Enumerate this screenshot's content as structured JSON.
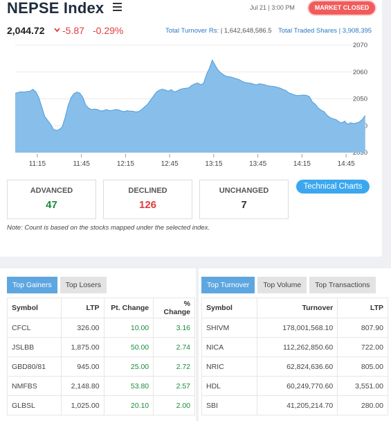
{
  "header": {
    "title": "NEPSE Index",
    "date": "Jul 21 | 3:00 PM",
    "market_status": "MARKET CLOSED"
  },
  "index": {
    "value": "2,044.72",
    "change": "-5.87",
    "change_pct": "-0.29%",
    "turnover_label": "Total Turnover Rs:",
    "turnover_value": "| 1,642,648,586.5",
    "traded_label": "Total Traded Shares",
    "traded_value": "| 3,908,395"
  },
  "colors": {
    "accent": "#3ba7ee",
    "negative": "#e23b3b",
    "positive": "#1a8a3a",
    "chart_fill": "#88bfea",
    "chart_line": "#5ba3df",
    "badge": "#f15b5b"
  },
  "chart_data": {
    "type": "area",
    "x_ticks": [
      "11:15",
      "11:45",
      "12:15",
      "12:45",
      "13:15",
      "13:45",
      "14:15",
      "14:45"
    ],
    "y_ticks": [
      "2070",
      "2060",
      "2050",
      "2040",
      "2030"
    ],
    "ylim": [
      2030,
      2070
    ],
    "grid": true,
    "x": [
      "11:00",
      "11:02",
      "11:04",
      "11:06",
      "11:08",
      "11:10",
      "11:12",
      "11:14",
      "11:16",
      "11:18",
      "11:20",
      "11:22",
      "11:24",
      "11:26",
      "11:28",
      "11:30",
      "11:32",
      "11:34",
      "11:36",
      "11:38",
      "11:40",
      "11:42",
      "11:44",
      "11:46",
      "11:48",
      "11:50",
      "11:52",
      "11:54",
      "11:56",
      "11:58",
      "12:00",
      "12:02",
      "12:04",
      "12:06",
      "12:08",
      "12:10",
      "12:12",
      "12:14",
      "12:16",
      "12:18",
      "12:20",
      "12:22",
      "12:24",
      "12:26",
      "12:28",
      "12:30",
      "12:32",
      "12:34",
      "12:36",
      "12:38",
      "12:40",
      "12:42",
      "12:44",
      "12:46",
      "12:48",
      "12:50",
      "12:52",
      "12:54",
      "12:56",
      "12:58",
      "13:00",
      "13:02",
      "13:04",
      "13:06",
      "13:08",
      "13:10",
      "13:12",
      "13:14",
      "13:16",
      "13:18",
      "13:20",
      "13:22",
      "13:24",
      "13:26",
      "13:28",
      "13:30",
      "13:32",
      "13:34",
      "13:36",
      "13:38",
      "13:40",
      "13:42",
      "13:44",
      "13:46",
      "13:48",
      "13:50",
      "13:52",
      "13:54",
      "13:56",
      "13:58",
      "14:00",
      "14:02",
      "14:04",
      "14:06",
      "14:08",
      "14:10",
      "14:12",
      "14:14",
      "14:16",
      "14:18",
      "14:20",
      "14:22",
      "14:24",
      "14:26",
      "14:28",
      "14:30",
      "14:32",
      "14:34",
      "14:36",
      "14:38",
      "14:40",
      "14:42",
      "14:44",
      "14:46",
      "14:48",
      "14:50",
      "14:52",
      "14:54",
      "14:56",
      "14:58"
    ],
    "values": [
      2052,
      2052.4,
      2052.6,
      2052.5,
      2052.7,
      2052.8,
      2053.5,
      2052.6,
      2050.5,
      2047,
      2043.5,
      2042,
      2040.6,
      2038.6,
      2038.2,
      2038.6,
      2039.6,
      2043.2,
      2047.5,
      2050.5,
      2052,
      2052.5,
      2052.1,
      2050.5,
      2047.6,
      2046.5,
      2046,
      2046.2,
      2046,
      2045.5,
      2045.6,
      2046,
      2045.6,
      2045.7,
      2046,
      2045.9,
      2045.5,
      2045.2,
      2045.6,
      2045.4,
      2045.4,
      2045.1,
      2045.3,
      2046,
      2047,
      2048,
      2049.5,
      2051,
      2052.5,
      2053.2,
      2053.6,
      2053.3,
      2052.8,
      2053.4,
      2052.6,
      2052.9,
      2053.5,
      2053.8,
      2053.9,
      2054.1,
      2055,
      2055.5,
      2055.9,
      2055.3,
      2055.7,
      2059,
      2061.3,
      2064.4,
      2062.4,
      2060.6,
      2059.6,
      2058.8,
      2058.3,
      2058.2,
      2057.9,
      2057.5,
      2057.2,
      2056.6,
      2056.1,
      2055.9,
      2055.8,
      2055.5,
      2055.2,
      2055.6,
      2055.4,
      2055.2,
      2054.8,
      2054.7,
      2054.6,
      2054.3,
      2054,
      2053.5,
      2053.1,
      2052.2,
      2051.8,
      2051.4,
      2051.2,
      2051.3,
      2051.4,
      2051.3,
      2050.8,
      2048.9,
      2048,
      2046.6,
      2045.8,
      2045.2,
      2043.9,
      2043,
      2042.6,
      2042.3,
      2041.5,
      2041,
      2041.7,
      2040.5,
      2041.1,
      2040.8,
      2041,
      2041.4,
      2042.3,
      2043.8
    ]
  },
  "stats": [
    {
      "label": "ADVANCED",
      "value": "47",
      "color": "#1a8a3a"
    },
    {
      "label": "DECLINED",
      "value": "126",
      "color": "#e23b3b"
    },
    {
      "label": "UNCHANGED",
      "value": "7",
      "color": "#333333"
    }
  ],
  "tech_button": "Technical Charts",
  "note": "Note: Count is based on the stocks mapped under the selected index.",
  "gainers_panel": {
    "tabs": [
      "Top Gainers",
      "Top Losers"
    ],
    "headers": [
      "Symbol",
      "LTP",
      "Pt. Change",
      "% Change"
    ],
    "rows": [
      [
        "CFCL",
        "326.00",
        "10.00",
        "3.16"
      ],
      [
        "JSLBB",
        "1,875.00",
        "50.00",
        "2.74"
      ],
      [
        "GBD80/81",
        "945.00",
        "25.00",
        "2.72"
      ],
      [
        "NMFBS",
        "2,148.80",
        "53.80",
        "2.57"
      ],
      [
        "GLBSL",
        "1,025.00",
        "20.10",
        "2.00"
      ]
    ]
  },
  "turnover_panel": {
    "tabs": [
      "Top Turnover",
      "Top Volume",
      "Top Transactions"
    ],
    "headers": [
      "Symbol",
      "Turnover",
      "LTP"
    ],
    "rows": [
      [
        "SHIVM",
        "178,001,568.10",
        "807.90"
      ],
      [
        "NICA",
        "112,262,850.60",
        "722.00"
      ],
      [
        "NRIC",
        "62,824,636.60",
        "805.00"
      ],
      [
        "HDL",
        "60,249,770.60",
        "3,551.00"
      ],
      [
        "SBI",
        "41,205,214.70",
        "280.00"
      ]
    ]
  }
}
